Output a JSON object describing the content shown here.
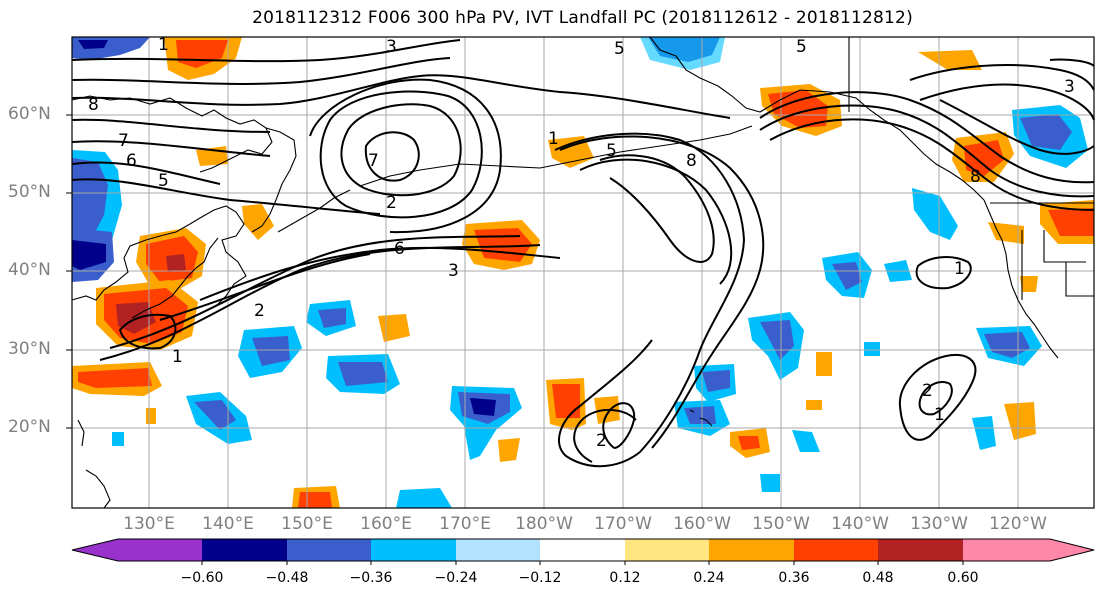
{
  "title": "2018112312 F006 300 hPa PV, IVT Landfall PC (2018112612 - 2018112812)",
  "lat_labels": [
    "60°N",
    "50°N",
    "40°N",
    "30°N",
    "20°N"
  ],
  "lon_labels": [
    "130°E",
    "140°E",
    "150°E",
    "160°E",
    "170°E",
    "180°W",
    "170°W",
    "160°W",
    "150°W",
    "140°W",
    "130°W",
    "120°W"
  ],
  "colorbar": {
    "labels": [
      "−0.60",
      "−0.48",
      "−0.36",
      "−0.24",
      "−0.12",
      "0.12",
      "0.24",
      "0.36",
      "0.48",
      "0.60"
    ],
    "colors": [
      "#9932cc",
      "#00008b",
      "#3a5fcd",
      "#00bfff",
      "#b2e2ff",
      "#ffffff",
      "#ffe680",
      "#ffa500",
      "#ff4000",
      "#b22222",
      "#ff88aa"
    ]
  },
  "contour_labels": [
    "1",
    "2",
    "3",
    "5",
    "6",
    "7",
    "8"
  ],
  "colors": {
    "negative": "#3a5fcd",
    "positive": "#ff4000",
    "contour": "#000000",
    "grid": "#a0a0a0"
  }
}
